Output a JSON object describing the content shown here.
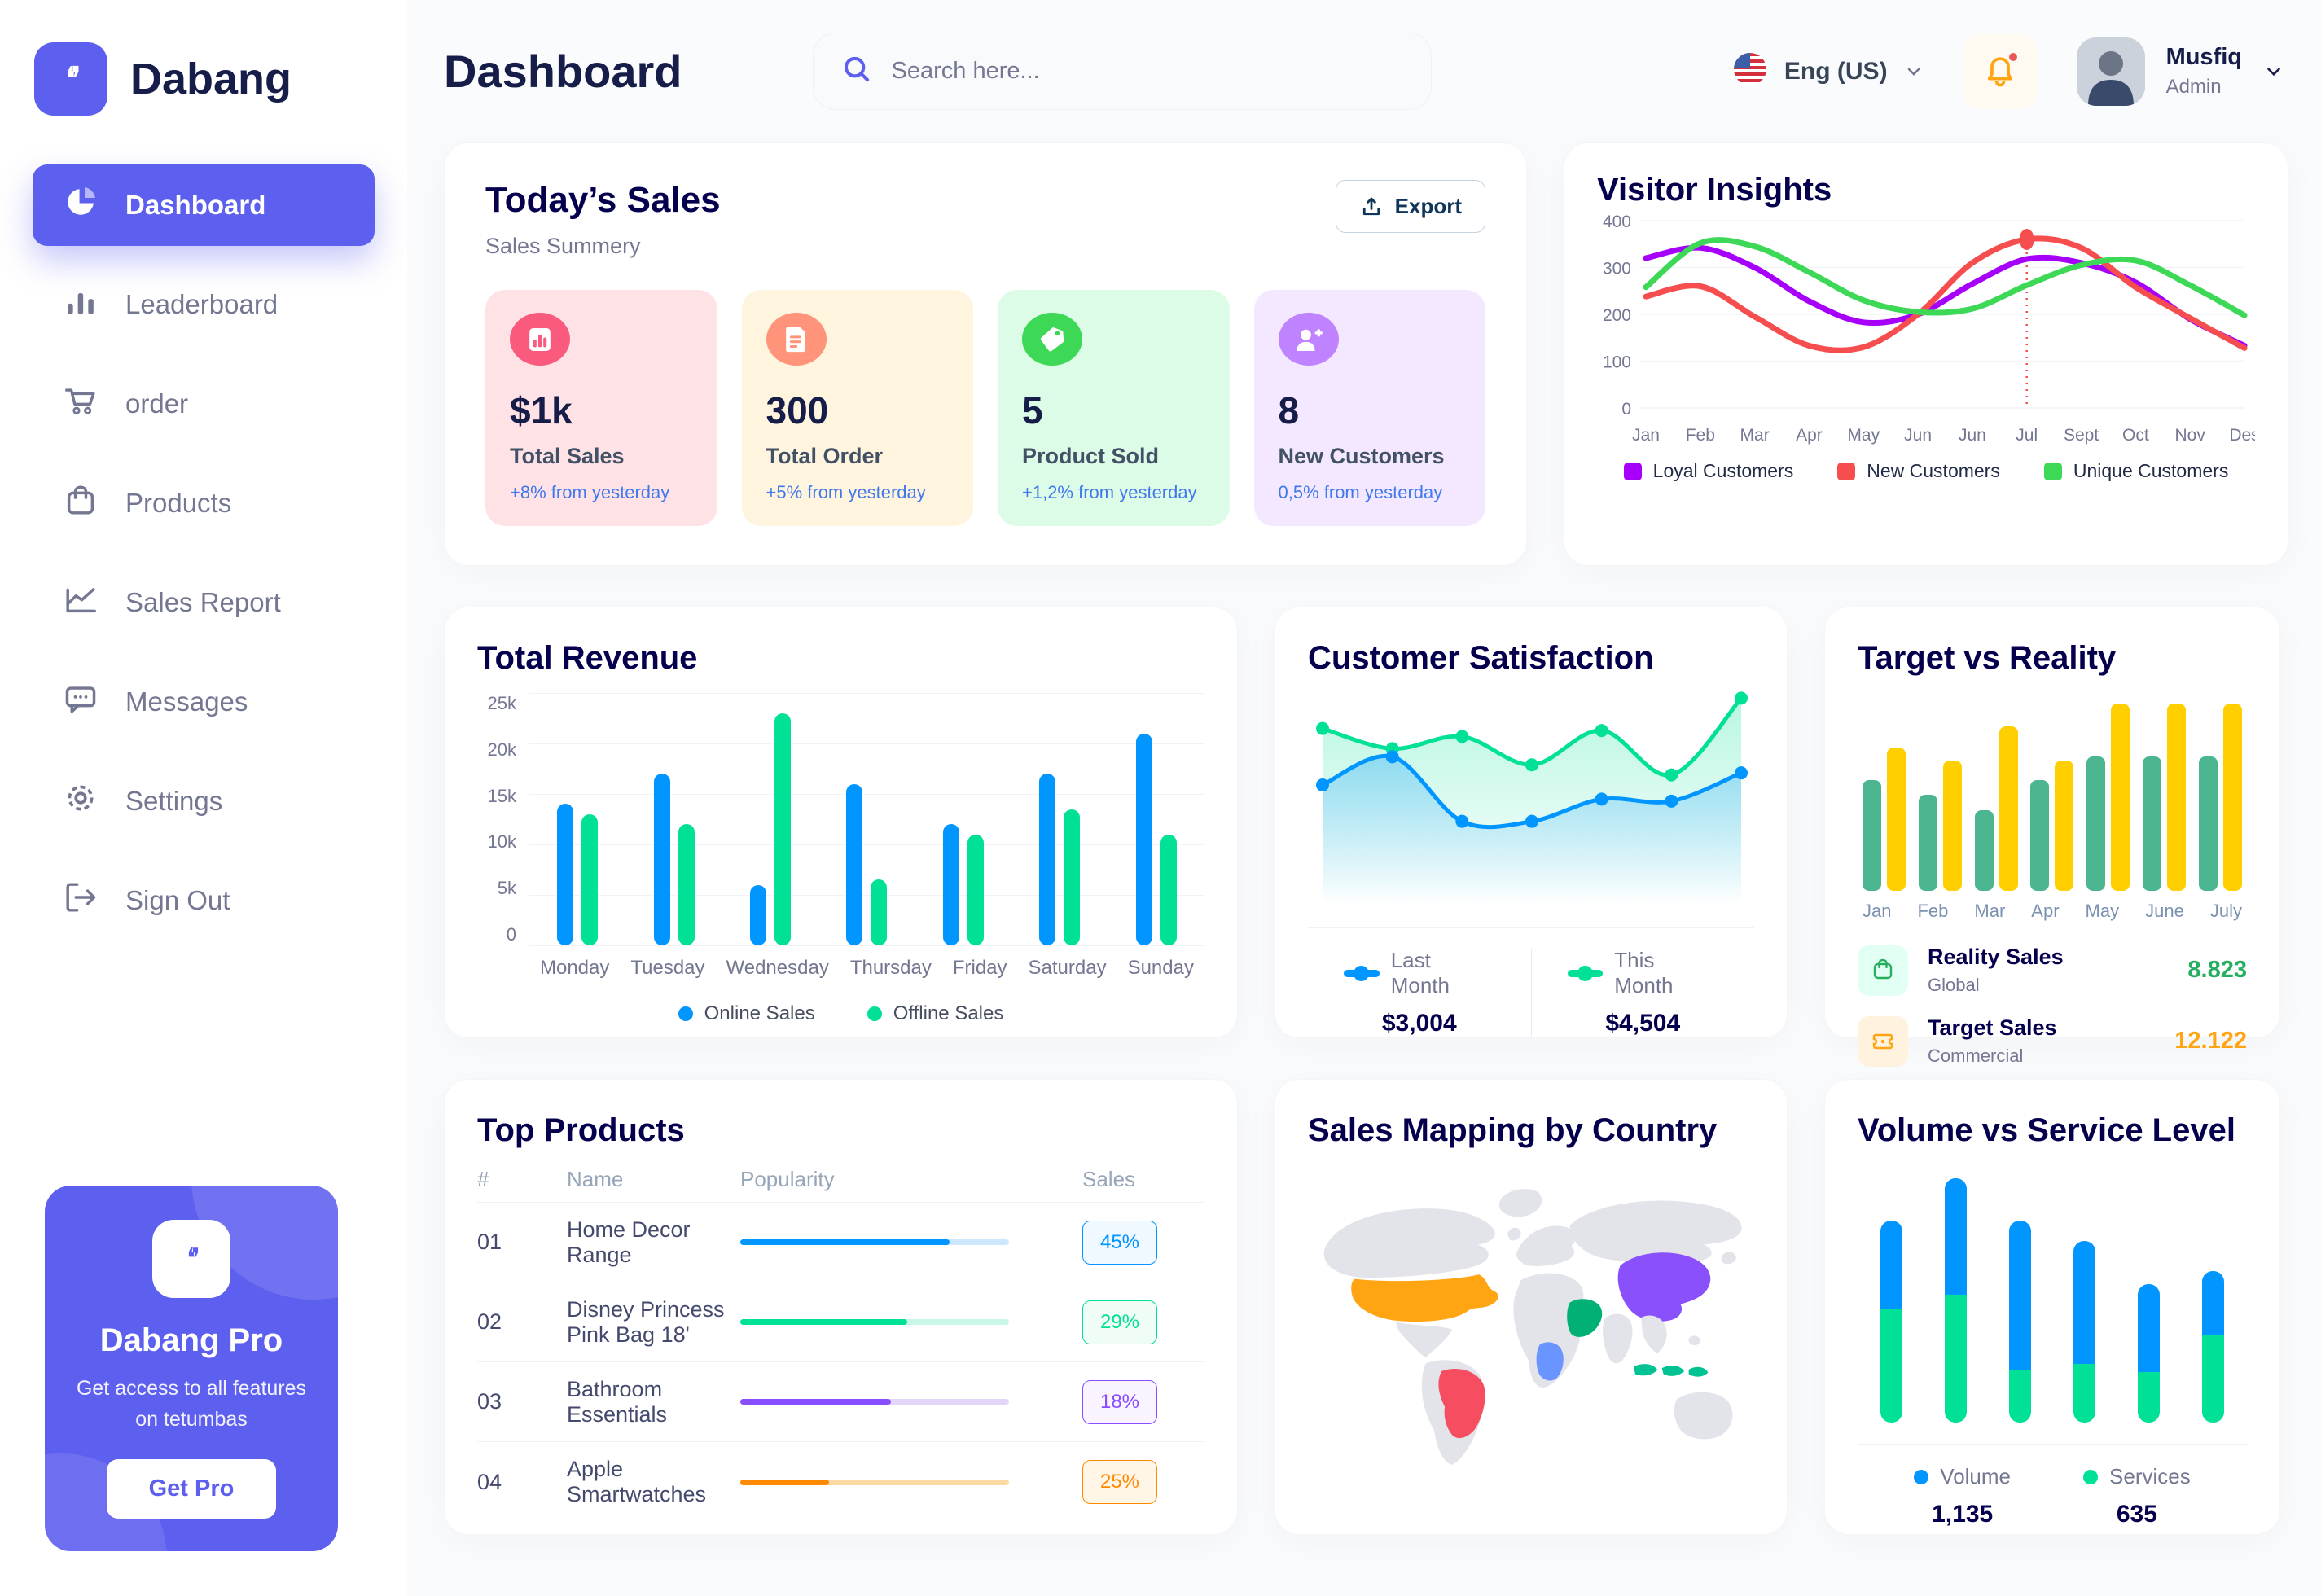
{
  "app": {
    "brand": "Dabang"
  },
  "header": {
    "title": "Dashboard",
    "search_placeholder": "Search here...",
    "language": "Eng (US)",
    "user": {
      "name": "Musfiq",
      "role": "Admin"
    }
  },
  "sidebar": {
    "items": [
      {
        "id": "dashboard",
        "label": "Dashboard",
        "icon": "pie-chart-icon",
        "active": true
      },
      {
        "id": "leaderboard",
        "label": "Leaderboard",
        "icon": "bar-chart-icon",
        "active": false
      },
      {
        "id": "order",
        "label": "order",
        "icon": "cart-icon",
        "active": false
      },
      {
        "id": "products",
        "label": "Products",
        "icon": "bag-icon",
        "active": false
      },
      {
        "id": "sales-report",
        "label": "Sales Report",
        "icon": "line-chart-icon",
        "active": false
      },
      {
        "id": "messages",
        "label": "Messages",
        "icon": "message-icon",
        "active": false
      },
      {
        "id": "settings",
        "label": "Settings",
        "icon": "gear-icon",
        "active": false
      },
      {
        "id": "sign-out",
        "label": "Sign Out",
        "icon": "sign-out-icon",
        "active": false
      }
    ],
    "promo": {
      "title": "Dabang Pro",
      "subtitle": "Get access to all features on tetumbas",
      "cta": "Get Pro"
    }
  },
  "today_sales": {
    "title": "Today’s Sales",
    "subtitle": "Sales Summery",
    "export_label": "Export",
    "cards": [
      {
        "value": "$1k",
        "label": "Total Sales",
        "change": "+8% from yesterday",
        "bg": "#FFE2E5",
        "icon_bg": "#FA5A7D",
        "icon": "sales-chart-icon"
      },
      {
        "value": "300",
        "label": "Total Order",
        "change": "+5% from yesterday",
        "bg": "#FFF4DE",
        "icon_bg": "#FF947A",
        "icon": "order-doc-icon"
      },
      {
        "value": "5",
        "label": "Product Sold",
        "change": "+1,2% from yesterday",
        "bg": "#DCFCE7",
        "icon_bg": "#3CD856",
        "icon": "tag-icon"
      },
      {
        "value": "8",
        "label": "New Customers",
        "change": "0,5% from yesterday",
        "bg": "#F3E8FF",
        "icon_bg": "#BF83FF",
        "icon": "user-plus-icon"
      }
    ]
  },
  "visitor_insights": {
    "title": "Visitor Insights"
  },
  "total_revenue": {
    "title": "Total Revenue"
  },
  "customer_satisfaction": {
    "title": "Customer Satisfaction"
  },
  "target_vs_reality": {
    "title": "Target vs Reality",
    "legend": [
      {
        "title": "Reality Sales",
        "subtitle": "Global",
        "value": "8.823",
        "value_color": "#27AE60",
        "icon_bg": "#E2FFF3",
        "icon": "bag-icon",
        "icon_color": "#27AE60"
      },
      {
        "title": "Target Sales",
        "subtitle": "Commercial",
        "value": "12.122",
        "value_color": "#FFA412",
        "icon_bg": "#FFF2DE",
        "icon": "ticket-icon",
        "icon_color": "#FFA412"
      }
    ]
  },
  "top_products": {
    "title": "Top Products",
    "columns": [
      "#",
      "Name",
      "Popularity",
      "Sales"
    ],
    "rows": [
      {
        "num": "01",
        "name": "Home Decor Range",
        "popularity": 78,
        "sales": "45%",
        "color": "#0095FF",
        "track": "#CDE7FF",
        "badge_bg": "#F0F9FF"
      },
      {
        "num": "02",
        "name": "Disney Princess Pink Bag 18'",
        "popularity": 62,
        "sales": "29%",
        "color": "#00E096",
        "track": "#C9F7E6",
        "badge_bg": "#F0FDF4"
      },
      {
        "num": "03",
        "name": "Bathroom Essentials",
        "popularity": 56,
        "sales": "18%",
        "color": "#884DFF",
        "track": "#E4D6FA",
        "badge_bg": "#F9F4FF"
      },
      {
        "num": "04",
        "name": "Apple Smartwatches",
        "popularity": 33,
        "sales": "25%",
        "color": "#FF8900",
        "track": "#FFD9A3",
        "badge_bg": "#FFF6E8"
      }
    ]
  },
  "sales_mapping": {
    "title": "Sales Mapping by Country",
    "countries": [
      {
        "id": "usa",
        "name": "United States",
        "color": "#FFA412"
      },
      {
        "id": "brazil",
        "name": "Brazil",
        "color": "#F64E60"
      },
      {
        "id": "saudi-arabia",
        "name": "Saudi Arabia",
        "color": "#00B074"
      },
      {
        "id": "dr-congo",
        "name": "DR Congo",
        "color": "#6A94FF"
      },
      {
        "id": "china",
        "name": "China",
        "color": "#8950FC"
      },
      {
        "id": "indonesia",
        "name": "Indonesia",
        "color": "#00C292"
      }
    ]
  },
  "volume_service": {
    "title": "Volume vs Service Level"
  },
  "chart_data": {
    "visitor_insights": {
      "type": "line",
      "x": [
        "Jan",
        "Feb",
        "Mar",
        "Apr",
        "May",
        "Jun",
        "Jun",
        "Jul",
        "Sept",
        "Oct",
        "Nov",
        "Des"
      ],
      "yticks": [
        0,
        100,
        200,
        300,
        400
      ],
      "ylim": [
        0,
        400
      ],
      "series": [
        {
          "name": "Loyal Customers",
          "color": "#A700FA",
          "values": [
            320,
            342,
            300,
            228,
            183,
            200,
            265,
            318,
            310,
            268,
            190,
            133
          ]
        },
        {
          "name": "New Customers",
          "color": "#F64E4E",
          "values": [
            238,
            260,
            195,
            133,
            130,
            200,
            310,
            360,
            342,
            258,
            192,
            128
          ]
        },
        {
          "name": "Unique Customers",
          "color": "#3CD856",
          "values": [
            258,
            352,
            345,
            290,
            230,
            205,
            212,
            262,
            305,
            315,
            262,
            198
          ]
        }
      ],
      "marker": {
        "series": "New Customers",
        "x_index": 7,
        "value": 360
      }
    },
    "total_revenue": {
      "type": "bar",
      "categories": [
        "Monday",
        "Tuesday",
        "Wednesday",
        "Thursday",
        "Friday",
        "Saturday",
        "Sunday"
      ],
      "ytick_labels": [
        "25k",
        "20k",
        "15k",
        "10k",
        "5k",
        "0"
      ],
      "ymax": 25,
      "series": [
        {
          "name": "Online Sales",
          "color": "#0095FF",
          "values": [
            14,
            17,
            6,
            16,
            12,
            17,
            21
          ]
        },
        {
          "name": "Offline Sales",
          "color": "#00E096",
          "values": [
            13,
            12,
            23,
            6.5,
            11,
            13.5,
            11
          ]
        }
      ]
    },
    "customer_satisfaction": {
      "type": "area",
      "ymax": 100,
      "series": [
        {
          "name": "Last Month",
          "color": "#0095FF",
          "total": "$3,004",
          "values": [
            52,
            66,
            34,
            34,
            45,
            44,
            58
          ]
        },
        {
          "name": "This Month",
          "color": "#00E096",
          "total": "$4,504",
          "values": [
            80,
            70,
            76,
            62,
            79,
            57,
            95
          ]
        }
      ]
    },
    "target_vs_reality": {
      "type": "bar",
      "categories": [
        "Jan",
        "Feb",
        "Mar",
        "Apr",
        "May",
        "June",
        "July"
      ],
      "ymax": 100,
      "series": [
        {
          "name": "Reality Sales",
          "color": "#4AB58E",
          "values": [
            58,
            50,
            42,
            58,
            70,
            70,
            70
          ]
        },
        {
          "name": "Target Sales",
          "color": "#FFCF00",
          "values": [
            75,
            68,
            86,
            68,
            98,
            98,
            98
          ]
        }
      ]
    },
    "volume_service": {
      "type": "stacked-bar",
      "ymax": 310,
      "series": [
        {
          "name": "Volume",
          "color": "#0095FF",
          "total": "1,135",
          "values": [
            108,
            143,
            184,
            151,
            108,
            78
          ]
        },
        {
          "name": "Services",
          "color": "#00E096",
          "total": "635",
          "values": [
            140,
            157,
            64,
            72,
            62,
            108
          ]
        }
      ]
    }
  }
}
